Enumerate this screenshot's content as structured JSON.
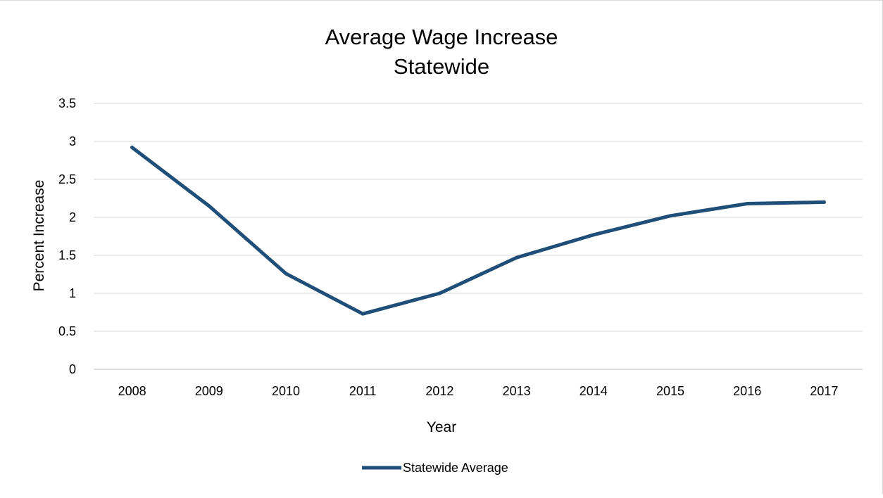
{
  "chart_data": {
    "type": "line",
    "title_line1": "Average Wage Increase",
    "title_line2": "Statewide",
    "xlabel": "Year",
    "ylabel": "Percent Increase",
    "ylim": [
      0,
      3.5
    ],
    "y_ticks": [
      "0",
      "0.5",
      "1",
      "1.5",
      "2",
      "2.5",
      "3",
      "3.5"
    ],
    "categories": [
      "2008",
      "2009",
      "2010",
      "2011",
      "2012",
      "2013",
      "2014",
      "2015",
      "2016",
      "2017"
    ],
    "series": [
      {
        "name": "Statewide Average",
        "color": "#1f4e79",
        "values": [
          2.92,
          2.15,
          1.26,
          0.73,
          1.0,
          1.47,
          1.77,
          2.02,
          2.18,
          2.2
        ]
      }
    ],
    "grid": true,
    "legend_position": "bottom"
  }
}
